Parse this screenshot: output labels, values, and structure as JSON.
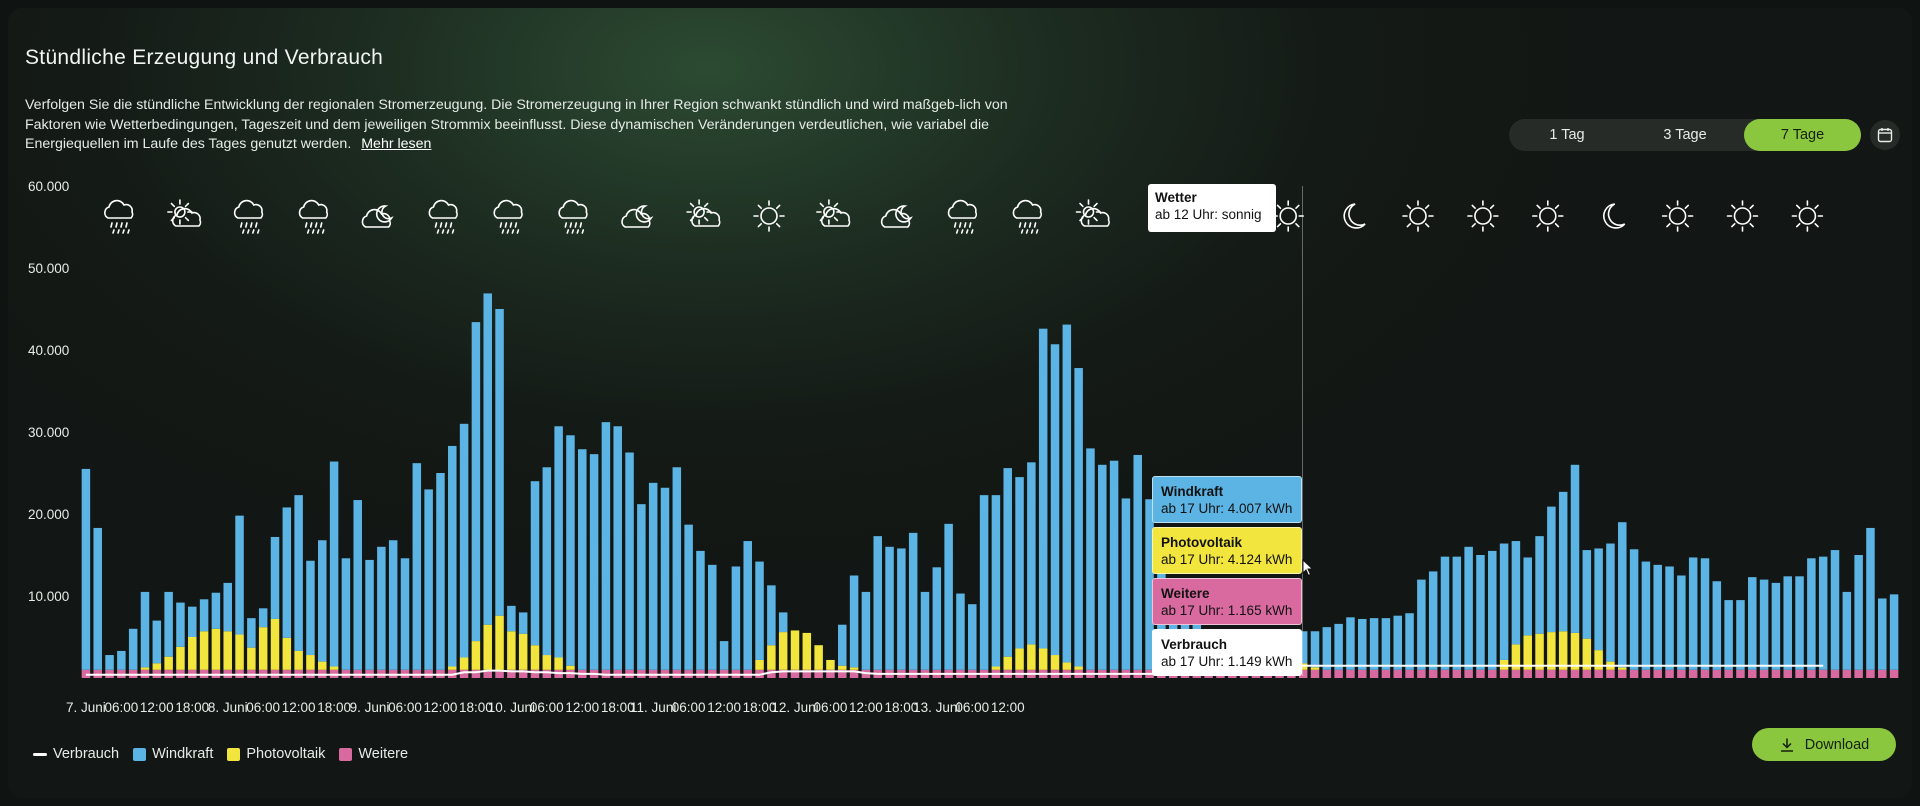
{
  "header": {
    "title": "Stündliche Erzeugung und Verbrauch",
    "description": "Verfolgen Sie die stündliche Entwicklung der regionalen Stromerzeugung. Die Stromerzeugung in Ihrer Region schwankt stündlich und wird maßgeb-lich von Faktoren wie Wetterbedingungen, Tageszeit und dem jeweiligen Strommix beeinflusst. Diese dynamischen Veränderungen verdeutlichen, wie variabel die Energiequellen im Laufe des Tages genutzt werden.",
    "more_link": "Mehr lesen"
  },
  "range_selector": {
    "options": [
      "1 Tag",
      "3 Tage",
      "7 Tage"
    ],
    "selected": "7 Tage"
  },
  "calendar_icon": "calendar-icon",
  "colors": {
    "windkraft": "#5bb4e4",
    "photovoltaik": "#f2e53d",
    "weitere": "#d96aa0",
    "verbrauch": "#ffffff",
    "accent": "#8bc63f"
  },
  "weather_icons": [
    "rain",
    "partly-cloudy",
    "rain",
    "rain",
    "night-cloudy",
    "rain",
    "rain",
    "rain",
    "night-cloudy",
    "partly-cloudy",
    "sunny",
    "partly-cloudy",
    "night-cloudy",
    "rain",
    "rain",
    "partly-cloudy",
    "partly-cloudy",
    "sunny",
    "sunny",
    "night-clear",
    "sunny",
    "sunny",
    "sunny",
    "night-clear",
    "sunny",
    "sunny",
    "sunny"
  ],
  "weather_tooltip": {
    "title": "Wetter",
    "text": "ab 12 Uhr: sonnig"
  },
  "tooltips": {
    "windkraft": {
      "title": "Windkraft",
      "text": "ab 17 Uhr: 4.007 kWh"
    },
    "photovoltaik": {
      "title": "Photovoltaik",
      "text": "ab 17 Uhr: 4.124 kWh"
    },
    "weitere": {
      "title": "Weitere",
      "text": "ab 17 Uhr: 1.165 kWh"
    },
    "verbrauch": {
      "title": "Verbrauch",
      "text": "ab 17 Uhr: 1.149 kWh"
    }
  },
  "legend": [
    {
      "key": "verbrauch",
      "label": "Verbrauch"
    },
    {
      "key": "windkraft",
      "label": "Windkraft"
    },
    {
      "key": "photovoltaik",
      "label": "Photovoltaik"
    },
    {
      "key": "weitere",
      "label": "Weitere"
    }
  ],
  "download_label": "Download",
  "chart_data": {
    "type": "bar",
    "stacked": true,
    "title": "",
    "xlabel": "",
    "ylabel": "",
    "ylim": [
      0,
      60000
    ],
    "y_ticks": [
      "60.000",
      "50.000",
      "40.000",
      "30.000",
      "20.000",
      "10.000"
    ],
    "y_tick_values": [
      60000,
      50000,
      40000,
      30000,
      20000,
      10000
    ],
    "x_tick_labels": [
      "7. Juni",
      "06:00",
      "12:00",
      "18:00",
      "8. Juni",
      "06:00",
      "12:00",
      "18:00",
      "9. Juni",
      "06:00",
      "12:00",
      "18:00",
      "10. Juni",
      "06:00",
      "12:00",
      "18:00",
      "11. Juni",
      "06:00",
      "12:00",
      "18:00",
      "12. Juni",
      "06:00",
      "12:00",
      "18:00",
      "13. Juni",
      "06:00",
      "12:00"
    ],
    "hour_step": 2,
    "totals": [
      25500,
      18300,
      2800,
      3300,
      6000,
      10500,
      7000,
      10500,
      9200,
      8700,
      9600,
      10400,
      11600,
      19800,
      7300,
      8500,
      17200,
      20800,
      22300,
      14300,
      16800,
      26400,
      14600,
      21700,
      14400,
      16000,
      16800,
      14600,
      26200,
      23000,
      25000,
      28300,
      31000,
      43400,
      46900,
      45000,
      8800,
      8000,
      24000,
      25700,
      30700,
      29600,
      27900,
      27300,
      31200,
      30700,
      27500,
      21200,
      23800,
      23200,
      25700,
      18700,
      15500,
      13800,
      4500,
      13600,
      16700,
      14200,
      11300,
      8000,
      5500,
      1800,
      1500,
      1600,
      6500,
      12500,
      10500,
      17300,
      16000,
      15800,
      17700,
      10500,
      13500,
      18800,
      10300,
      9000,
      22300,
      22300,
      25600,
      24500,
      26300,
      42600,
      40700,
      43100,
      37800,
      28000,
      26000,
      26500,
      21900,
      27200,
      21800,
      15100,
      6500,
      9300,
      8500,
      5000,
      4600,
      5200,
      4200,
      3500,
      3300,
      3700,
      5800,
      5700,
      5700,
      6200,
      6600,
      7400,
      7200,
      7300,
      7300,
      7600,
      7900,
      12000,
      13000,
      14800,
      14800,
      16000,
      15000,
      15500,
      16400,
      16700,
      14700,
      17300,
      20900,
      22700,
      26000,
      15600,
      15800,
      16400,
      19000,
      15700,
      14200,
      13800,
      13600,
      12500,
      14700,
      14600,
      11800,
      9500,
      9500,
      12300,
      12000,
      11600,
      12400,
      12400,
      14600,
      14800,
      15600,
      10500,
      15000,
      18300,
      9700,
      10200
    ],
    "series": [
      {
        "name": "Windkraft",
        "note": "remainder above other sources"
      },
      {
        "name": "Photovoltaik",
        "values": [
          0,
          0,
          0,
          0,
          0,
          300,
          800,
          1600,
          2800,
          4000,
          4700,
          5000,
          4700,
          4300,
          2700,
          5200,
          6200,
          3900,
          2300,
          1800,
          1000,
          400,
          0,
          0,
          0,
          0,
          0,
          0,
          0,
          0,
          0,
          400,
          1500,
          3500,
          5500,
          6600,
          4700,
          4400,
          3000,
          1800,
          1500,
          500,
          0,
          0,
          0,
          0,
          0,
          0,
          0,
          0,
          0,
          0,
          0,
          0,
          0,
          0,
          0,
          1200,
          3000,
          4600,
          4800,
          4500,
          3000,
          1200,
          500,
          300,
          0,
          0,
          0,
          0,
          0,
          0,
          0,
          0,
          0,
          0,
          0,
          400,
          1600,
          2600,
          3100,
          2600,
          1800,
          900,
          400,
          0,
          0,
          0,
          0,
          0,
          0,
          0,
          0,
          0,
          0,
          0,
          1200,
          2800,
          4000,
          4400,
          4200,
          3300,
          2000,
          800,
          300,
          0,
          0,
          0,
          0,
          0,
          0,
          0,
          0,
          0,
          0,
          0,
          0,
          0,
          0,
          0,
          1200,
          3100,
          4200,
          4400,
          4600,
          4700,
          4500,
          3800,
          2400,
          1000,
          300,
          0,
          0,
          0,
          0,
          0,
          0,
          0,
          0,
          0,
          0,
          0,
          0,
          0,
          0,
          0,
          0,
          0,
          0,
          0,
          0,
          0
        ]
      },
      {
        "name": "Weitere",
        "values": [
          1000,
          1000,
          1000,
          1000,
          1000,
          1000,
          1000,
          1000,
          1000,
          1000,
          1000,
          1000,
          1000,
          1000,
          1000,
          1000,
          1000,
          1000,
          1000,
          1000,
          1000,
          1000,
          1000,
          1000,
          1000,
          1000,
          1000,
          1000,
          1000,
          1000,
          1000,
          1000,
          1000,
          1000,
          1000,
          1000,
          1000,
          1000,
          1000,
          1000,
          1000,
          1000,
          1000,
          1000,
          1000,
          1000,
          1000,
          1000,
          1000,
          1000,
          1000,
          1000,
          1000,
          1000,
          1000,
          1000,
          1000,
          1000,
          1000,
          1000,
          1000,
          1000,
          1000,
          1000,
          1000,
          1000,
          1000,
          1000,
          1000,
          1000,
          1000,
          1000,
          1000,
          1000,
          1000,
          1000,
          1000,
          1000,
          1000,
          1000,
          1000,
          1000,
          1000,
          1000,
          1000,
          1000,
          1000,
          1000,
          1000,
          1000,
          1000,
          1000,
          1000,
          1000,
          1000,
          1000,
          1000,
          1000,
          1000,
          1000,
          1000,
          1000,
          1000,
          1000,
          1000,
          1000,
          1000,
          1000,
          1000,
          1000,
          1000,
          1000,
          1000,
          1000,
          1000,
          1000,
          1000,
          1000,
          1000,
          1000,
          1000,
          1000,
          1000,
          1000,
          1000,
          1000,
          1000,
          1000,
          1000,
          1000,
          1000,
          1000,
          1000,
          1000,
          1000,
          1000,
          1000,
          1000,
          1000,
          1000,
          1000,
          1000,
          1000,
          1000,
          1000,
          1000,
          1000,
          1000,
          1000,
          1000,
          1000,
          1000,
          1000,
          1000
        ]
      },
      {
        "name": "Verbrauch",
        "type": "line",
        "values": [
          400,
          400,
          400,
          400,
          400,
          400,
          400,
          400,
          400,
          400,
          400,
          400,
          400,
          400,
          400,
          400,
          400,
          400,
          400,
          400,
          400,
          400,
          400,
          400,
          400,
          400,
          400,
          400,
          400,
          400,
          400,
          400,
          700,
          700,
          900,
          900,
          800,
          800,
          700,
          700,
          600,
          600,
          500,
          500,
          400,
          400,
          400,
          400,
          400,
          400,
          400,
          400,
          400,
          400,
          400,
          400,
          400,
          400,
          700,
          800,
          800,
          800,
          800,
          800,
          800,
          800,
          600,
          500,
          500,
          500,
          500,
          500,
          500,
          500,
          500,
          500,
          500,
          500,
          500,
          500,
          500,
          500,
          500,
          500,
          500,
          500,
          500,
          500,
          500,
          500,
          500,
          500,
          500,
          500,
          500,
          500,
          500,
          500,
          500,
          1500,
          1500,
          1500,
          1500,
          1500,
          1500,
          1500,
          1500,
          1500,
          1500,
          1500,
          1500,
          1500,
          1500,
          1500,
          1500,
          1500,
          1500,
          1500,
          1500,
          1500,
          1500,
          1500,
          1500,
          1500,
          1500,
          1500,
          1500,
          1500,
          1500,
          1500,
          1500,
          1500,
          1500,
          1500,
          1500,
          1500,
          1500,
          1500,
          1500,
          1500,
          1500,
          1500,
          1500,
          1500,
          1500,
          1500,
          1500,
          1500
        ]
      }
    ],
    "grid": false,
    "legend_position": "bottom-left"
  }
}
